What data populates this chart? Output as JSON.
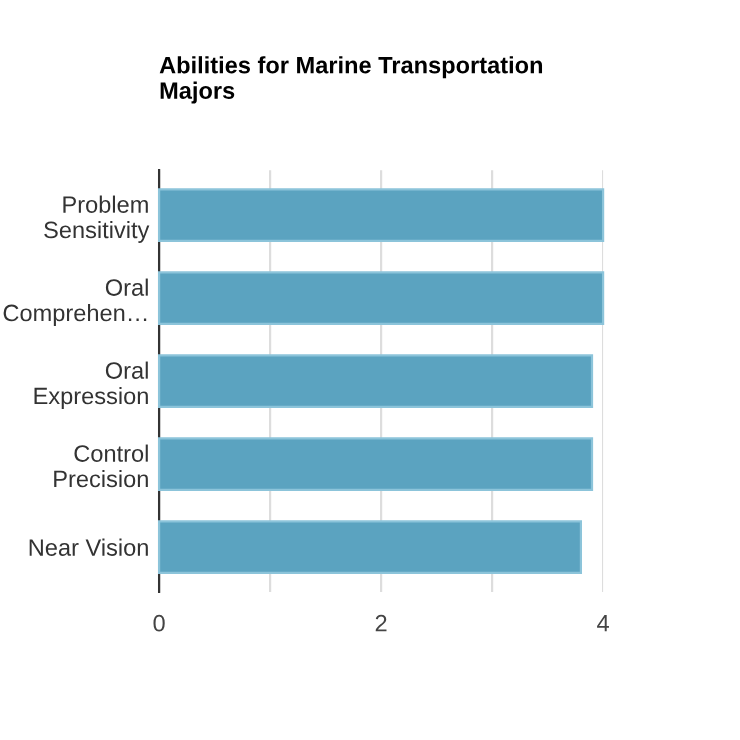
{
  "chart_data": {
    "type": "bar",
    "orientation": "horizontal",
    "title": "Abilities for Marine Transportation\nMajors",
    "categories": [
      "Problem\nSensitivity",
      "Oral\nComprehen…",
      "Oral\nExpression",
      "Control\nPrecision",
      "Near Vision"
    ],
    "values": [
      4.0,
      4.0,
      3.9,
      3.9,
      3.8
    ],
    "color": "#5ba3c0",
    "xlim": [
      0,
      4
    ],
    "xticks": [
      0,
      {
        "value": 1,
        "label": null
      },
      2,
      {
        "value": 3,
        "label": null
      },
      4
    ],
    "grid": "x"
  }
}
